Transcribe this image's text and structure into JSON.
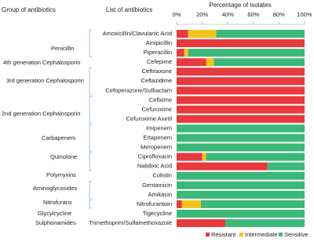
{
  "chart_data": {
    "type": "bar",
    "orientation": "horizontal",
    "stacked": true,
    "group_header": "Group of antibiotics",
    "list_header": "List of antibiotics",
    "x_label": "Percentage of isolates",
    "categories": [
      "Amoxicillin/Clavulanic Acid",
      "Amipicillin",
      "Piperacillin",
      "Cefepime",
      "Ceftriaxone",
      "Ceftazidime",
      "Cefoperazone/Sulbactam",
      "Cefixime",
      "Cefuroxime",
      "Cefuroxime Axetil",
      "Imipenem",
      "Ertapenem",
      "Meropenem",
      "Ciprofloxacin",
      "Nalidixic Acid",
      "Colistin",
      "Gentamicin",
      "Amikacin",
      "Nitrofurantoin",
      "Tigecycline",
      "Trimethoprim/Sulfamethoxazole"
    ],
    "groups": [
      "Penicillin",
      "4th generation Cephalosporin",
      "3rd generation Cephalosporin",
      "2nd generation Cephalosporin",
      "Carbapenem",
      "Quinolone",
      "Polymyxins",
      "Aminoglycosides",
      "Nitrofurans",
      "Glycylcycline",
      "Sulphonamides"
    ],
    "series": [
      {
        "name": "Resistant",
        "color": "#e8393e",
        "values": [
          9,
          100,
          6,
          23,
          100,
          100,
          100,
          100,
          100,
          100,
          0,
          0,
          0,
          20,
          71,
          0,
          0,
          0,
          4,
          0,
          38
        ]
      },
      {
        "name": "Intermediate",
        "color": "#f5c31c",
        "values": [
          22,
          0,
          3,
          6,
          0,
          0,
          0,
          0,
          0,
          0,
          0,
          0,
          0,
          3,
          0,
          0,
          0,
          0,
          15,
          0,
          0
        ]
      },
      {
        "name": "Sensitive",
        "color": "#3cb878",
        "values": [
          69,
          0,
          91,
          71,
          0,
          0,
          0,
          0,
          0,
          0,
          100,
          100,
          100,
          77,
          29,
          100,
          100,
          100,
          81,
          100,
          62
        ]
      }
    ],
    "xlim": [
      0,
      100
    ],
    "xticks": [
      {
        "value": 0,
        "label": "0%"
      },
      {
        "value": 20,
        "label": "20%"
      },
      {
        "value": 40,
        "label": "40%"
      },
      {
        "value": 60,
        "label": "60%"
      },
      {
        "value": 80,
        "label": "80%"
      },
      {
        "value": 100,
        "label": "100%"
      }
    ],
    "legend": "bottom"
  }
}
